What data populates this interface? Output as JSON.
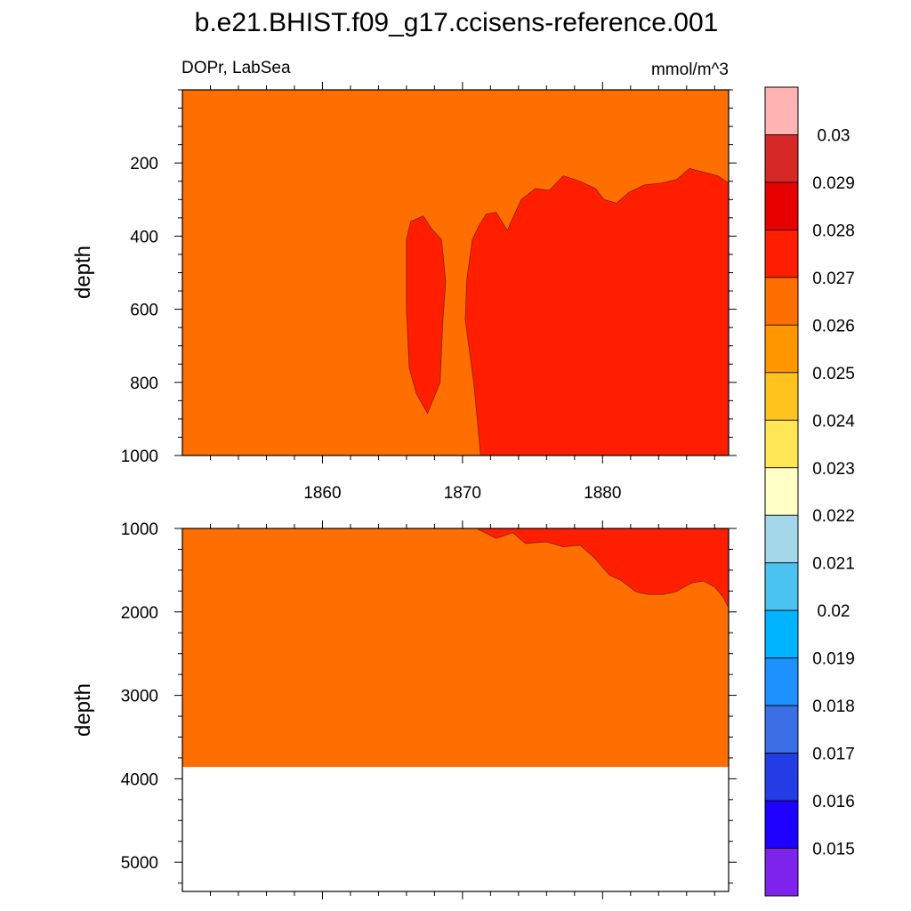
{
  "figure": {
    "title": "b.e21.BHIST.f09_g17.ccisens-reference.001",
    "left_subtitle": "DOPr, LabSea",
    "right_subtitle": "mmol/m^3"
  },
  "colors": {
    "background_field": "#FF6E00",
    "high_region": "#FF1E00",
    "below_bottom": "#FFFFFF"
  },
  "chart_data": [
    {
      "type": "heatmap",
      "panel": "upper",
      "xlabel": "",
      "ylabel": "depth",
      "xlim": [
        1850,
        1889
      ],
      "ylim": [
        1000,
        0
      ],
      "xticks": [
        1860,
        1870,
        1880
      ],
      "yticks": [
        200,
        400,
        600,
        800,
        1000
      ],
      "fill_value_range": [
        0.026,
        0.027
      ],
      "regions": [
        {
          "range": [
            0.027,
            0.028
          ],
          "polygon": [
            [
              1866.0,
              410
            ],
            [
              1866.3,
              360
            ],
            [
              1867.2,
              345
            ],
            [
              1867.8,
              380
            ],
            [
              1868.5,
              410
            ],
            [
              1868.8,
              525
            ],
            [
              1868.6,
              630
            ],
            [
              1868.4,
              800
            ],
            [
              1867.5,
              885
            ],
            [
              1866.7,
              830
            ],
            [
              1866.2,
              760
            ],
            [
              1866.0,
              600
            ]
          ]
        },
        {
          "range": [
            0.027,
            0.028
          ],
          "polygon": [
            [
              1871.3,
              1000
            ],
            [
              1870.8,
              800
            ],
            [
              1870.2,
              630
            ],
            [
              1870.3,
              520
            ],
            [
              1870.7,
              410
            ],
            [
              1871.2,
              370
            ],
            [
              1871.7,
              340
            ],
            [
              1872.4,
              335
            ],
            [
              1873.2,
              385
            ],
            [
              1873.6,
              350
            ],
            [
              1874.2,
              300
            ],
            [
              1875.2,
              270
            ],
            [
              1876.2,
              275
            ],
            [
              1877.2,
              235
            ],
            [
              1878.4,
              250
            ],
            [
              1879.5,
              270
            ],
            [
              1880.1,
              300
            ],
            [
              1881.0,
              310
            ],
            [
              1881.9,
              280
            ],
            [
              1883.0,
              260
            ],
            [
              1884.2,
              255
            ],
            [
              1885.3,
              245
            ],
            [
              1886.2,
              215
            ],
            [
              1887.2,
              225
            ],
            [
              1888.2,
              235
            ],
            [
              1889.0,
              255
            ],
            [
              1889.0,
              1000
            ]
          ]
        }
      ]
    },
    {
      "type": "heatmap",
      "panel": "lower",
      "xlabel": "",
      "ylabel": "depth",
      "xlim": [
        1850,
        1889
      ],
      "ylim": [
        5350,
        1000
      ],
      "yticks": [
        1000,
        2000,
        3000,
        4000,
        5000
      ],
      "fill_value_range": [
        0.026,
        0.027
      ],
      "ocean_bottom_depth": 3860,
      "regions": [
        {
          "range": [
            0.027,
            0.028
          ],
          "polygon": [
            [
              1871.0,
              1000
            ],
            [
              1872.4,
              1120
            ],
            [
              1873.6,
              1050
            ],
            [
              1874.5,
              1180
            ],
            [
              1876.0,
              1160
            ],
            [
              1877.2,
              1220
            ],
            [
              1878.4,
              1200
            ],
            [
              1879.4,
              1350
            ],
            [
              1880.5,
              1560
            ],
            [
              1881.3,
              1620
            ],
            [
              1882.4,
              1760
            ],
            [
              1883.3,
              1790
            ],
            [
              1884.3,
              1790
            ],
            [
              1885.2,
              1760
            ],
            [
              1886.4,
              1650
            ],
            [
              1887.2,
              1630
            ],
            [
              1888.0,
              1700
            ],
            [
              1888.6,
              1820
            ],
            [
              1889.0,
              1950
            ],
            [
              1889.0,
              1000
            ]
          ]
        }
      ]
    }
  ],
  "colorbar": {
    "labels": [
      "0.03",
      "0.029",
      "0.028",
      "0.027",
      "0.026",
      "0.025",
      "0.024",
      "0.023",
      "0.022",
      "0.021",
      "0.02",
      "0.019",
      "0.018",
      "0.017",
      "0.016",
      "0.015"
    ],
    "colors": [
      "#FFB4B4",
      "#D72828",
      "#E60000",
      "#FF1E00",
      "#FF6E00",
      "#FF9600",
      "#FFC31E",
      "#FFE655",
      "#FFFFC8",
      "#A5D7EB",
      "#4BC3F0",
      "#00B4FF",
      "#1E91FF",
      "#3C6EE6",
      "#233CE6",
      "#1E00FF",
      "#7D23EB"
    ]
  }
}
